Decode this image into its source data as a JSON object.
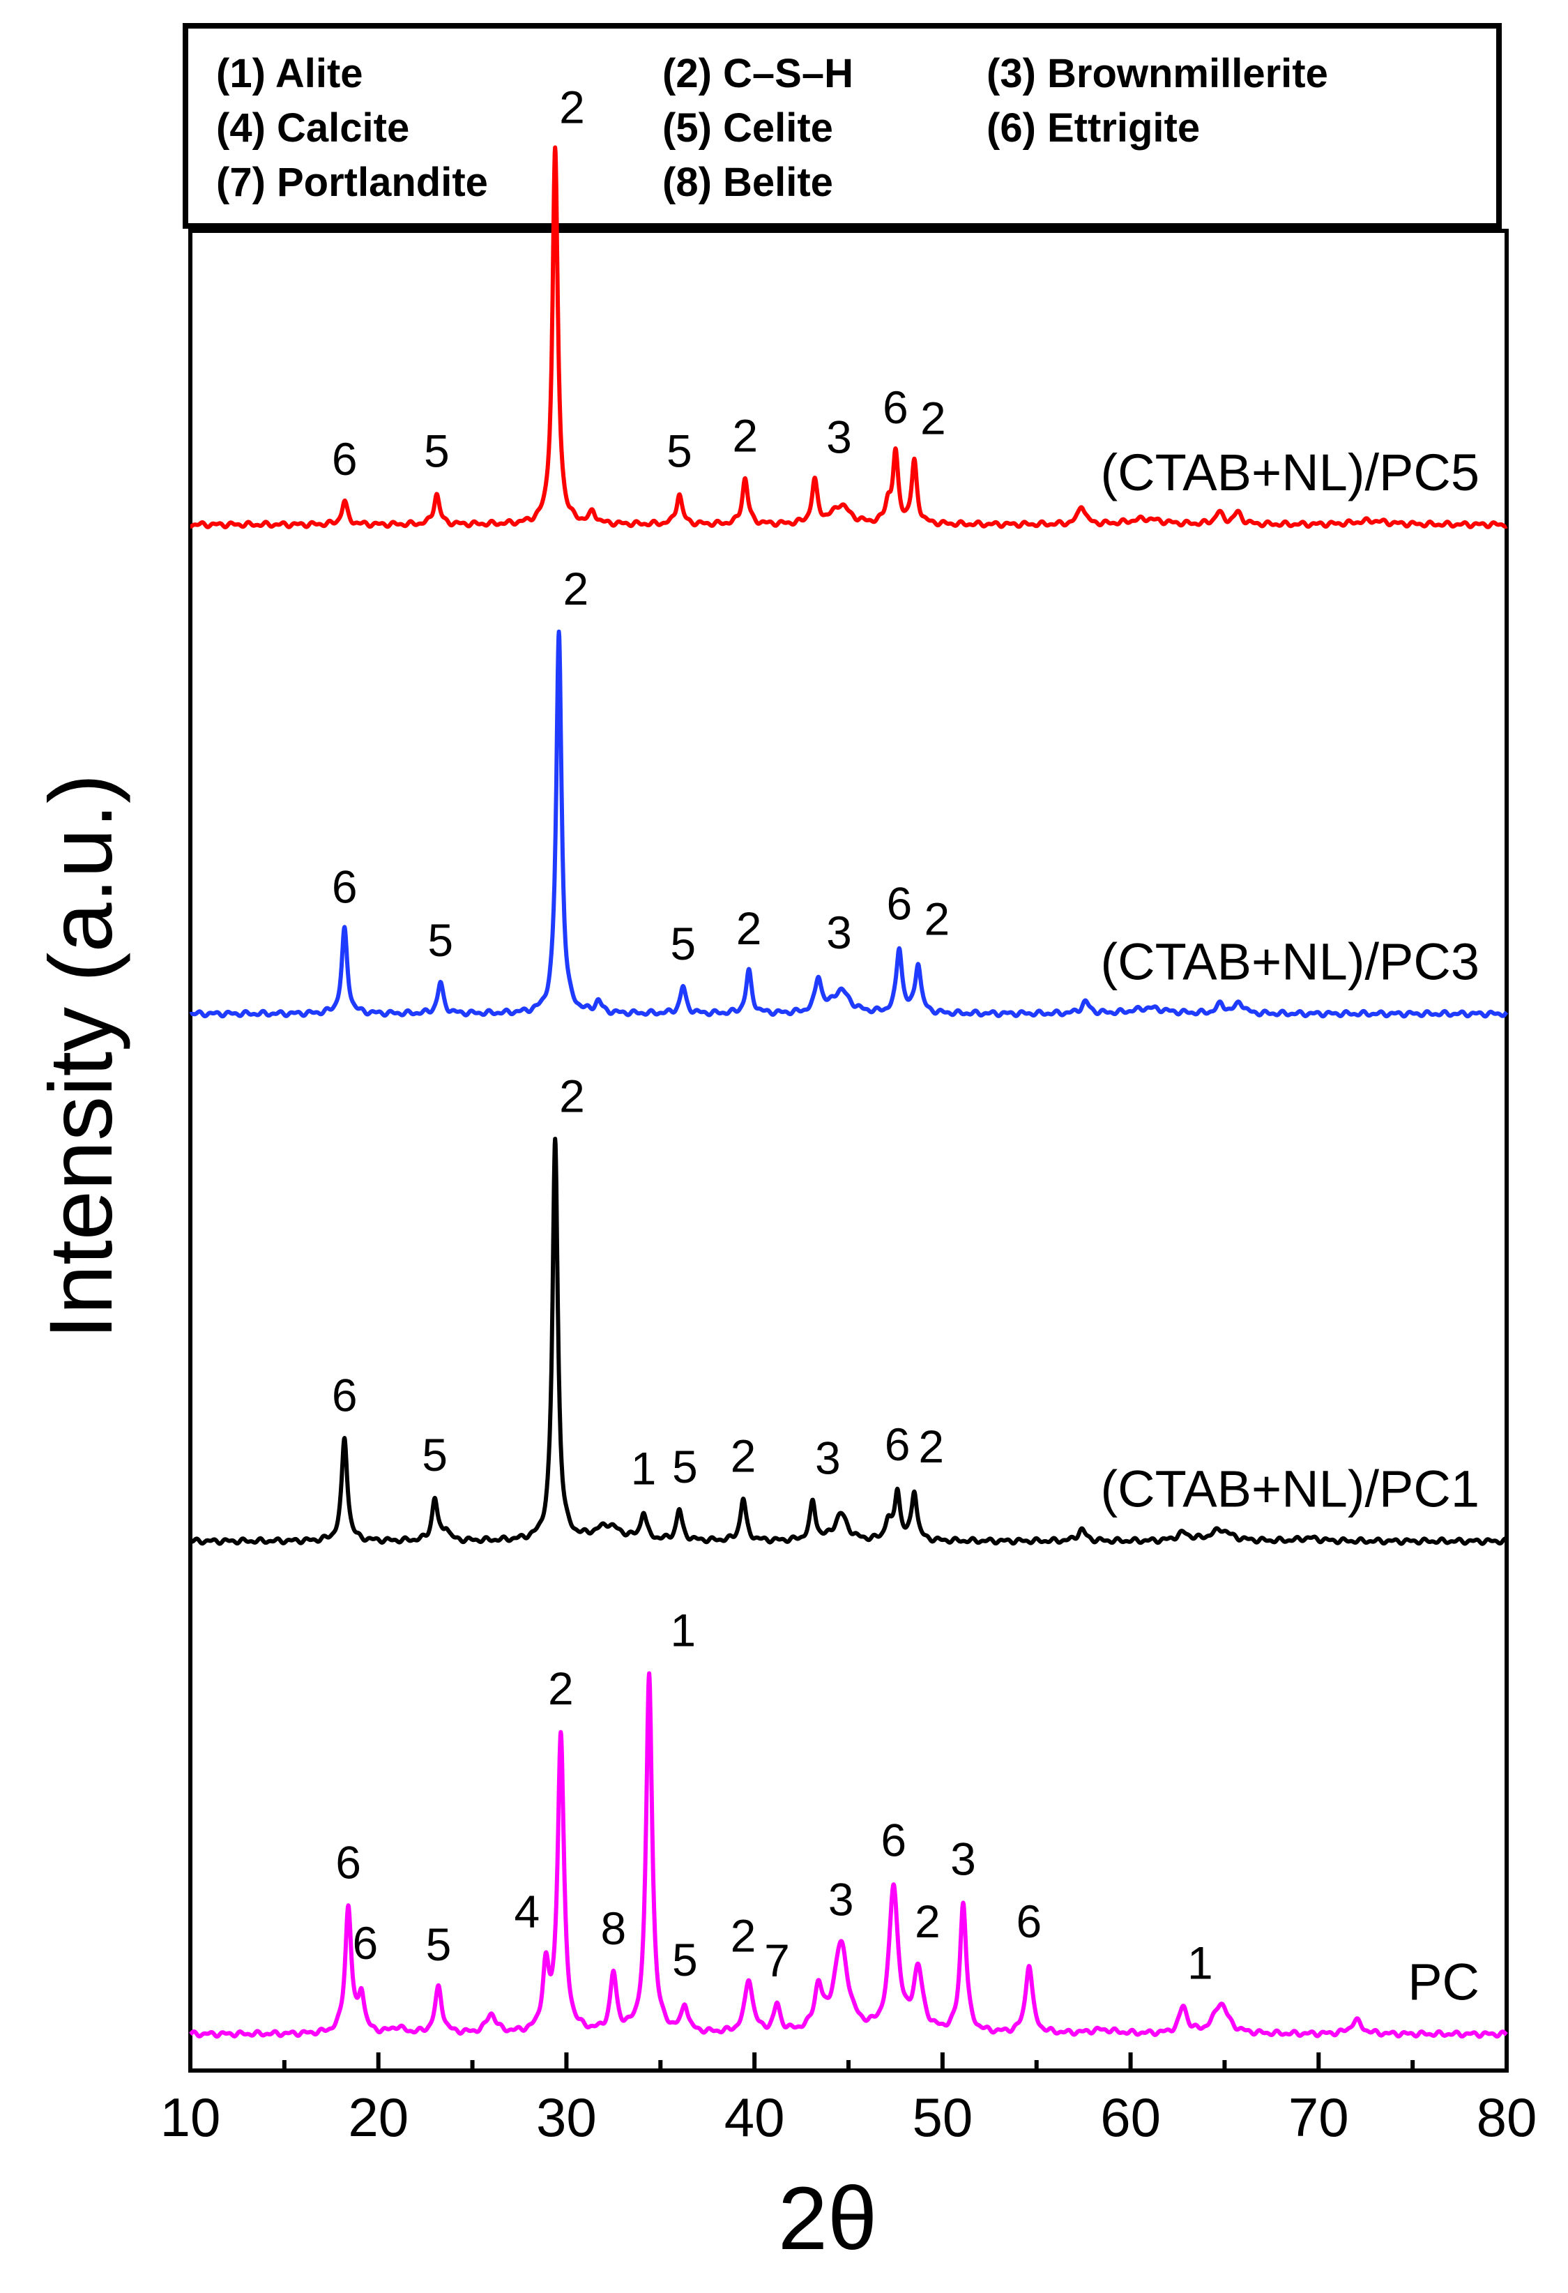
{
  "chart_data": {
    "type": "line",
    "title": "",
    "xlabel": "2θ",
    "ylabel": "Intensity (a.u.)",
    "xlim": [
      10,
      80
    ],
    "x_ticks": [
      10,
      20,
      30,
      40,
      50,
      60,
      70,
      80
    ],
    "legend": {
      "position": "top",
      "entries": [
        "(1) Alite",
        "(2) C–S–H",
        "(3) Brownmillerite",
        "(4) Calcite",
        "(5) Celite",
        "(6) Ettrigite",
        "(7) Portlandite",
        "(8) Belite"
      ]
    },
    "series": [
      {
        "name": "(CTAB+NL)/PC5",
        "color": "#ff0000",
        "offset": 2.66,
        "peaks": [
          {
            "x": 18.2,
            "h": 0.06,
            "w": 0.18
          },
          {
            "x": 23.1,
            "h": 0.08,
            "w": 0.18
          },
          {
            "x": 29.4,
            "h": 0.98,
            "w": 0.17
          },
          {
            "x": 31.4,
            "h": 0.03,
            "w": 0.2
          },
          {
            "x": 36.0,
            "h": 0.08,
            "w": 0.18
          },
          {
            "x": 39.5,
            "h": 0.12,
            "w": 0.18
          },
          {
            "x": 43.2,
            "h": 0.11,
            "w": 0.18
          },
          {
            "x": 44.6,
            "h": 0.05,
            "w": 0.55
          },
          {
            "x": 47.1,
            "h": 0.05,
            "w": 0.18
          },
          {
            "x": 47.5,
            "h": 0.18,
            "w": 0.17
          },
          {
            "x": 48.5,
            "h": 0.16,
            "w": 0.17
          },
          {
            "x": 57.4,
            "h": 0.05,
            "w": 0.22
          },
          {
            "x": 60.8,
            "h": 0.015,
            "w": 1.0
          },
          {
            "x": 64.7,
            "h": 0.03,
            "w": 0.25
          },
          {
            "x": 65.7,
            "h": 0.03,
            "w": 0.25
          },
          {
            "x": 72.8,
            "h": 0.01,
            "w": 1.0
          }
        ],
        "labels": [
          {
            "x": 18.2,
            "text": "6",
            "lift": 0.07
          },
          {
            "x": 23.1,
            "text": "5",
            "lift": 0.07
          },
          {
            "x": 29.4,
            "text": "2",
            "lift": 0.07,
            "dx": 0.9
          },
          {
            "x": 36.0,
            "text": "5",
            "lift": 0.07
          },
          {
            "x": 39.5,
            "text": "2",
            "lift": 0.07
          },
          {
            "x": 43.2,
            "text": "3",
            "lift": 0.07,
            "dx": 1.3
          },
          {
            "x": 47.5,
            "text": "6",
            "lift": 0.07
          },
          {
            "x": 48.5,
            "text": "2",
            "lift": 0.07,
            "dx": 1.0
          }
        ]
      },
      {
        "name": "(CTAB+NL)/PC3",
        "color": "#1f3bff",
        "offset": 1.38,
        "peaks": [
          {
            "x": 18.2,
            "h": 0.22,
            "w": 0.18
          },
          {
            "x": 23.3,
            "h": 0.08,
            "w": 0.18
          },
          {
            "x": 29.6,
            "h": 1.0,
            "w": 0.17
          },
          {
            "x": 31.7,
            "h": 0.03,
            "w": 0.2
          },
          {
            "x": 36.2,
            "h": 0.07,
            "w": 0.18
          },
          {
            "x": 39.7,
            "h": 0.11,
            "w": 0.18
          },
          {
            "x": 43.4,
            "h": 0.09,
            "w": 0.2
          },
          {
            "x": 44.6,
            "h": 0.06,
            "w": 0.55
          },
          {
            "x": 47.7,
            "h": 0.17,
            "w": 0.18
          },
          {
            "x": 48.7,
            "h": 0.13,
            "w": 0.18
          },
          {
            "x": 57.6,
            "h": 0.03,
            "w": 0.25
          },
          {
            "x": 61.0,
            "h": 0.015,
            "w": 1.0
          },
          {
            "x": 64.8,
            "h": 0.025,
            "w": 0.25
          },
          {
            "x": 65.8,
            "h": 0.03,
            "w": 0.25
          }
        ],
        "labels": [
          {
            "x": 18.2,
            "text": "6",
            "lift": 0.07
          },
          {
            "x": 23.3,
            "text": "5",
            "lift": 0.07
          },
          {
            "x": 29.6,
            "text": "2",
            "lift": 0.07,
            "dx": 0.9
          },
          {
            "x": 36.2,
            "text": "5",
            "lift": 0.07
          },
          {
            "x": 39.7,
            "text": "2",
            "lift": 0.07
          },
          {
            "x": 43.4,
            "text": "3",
            "lift": 0.07,
            "dx": 1.1
          },
          {
            "x": 47.7,
            "text": "6",
            "lift": 0.07
          },
          {
            "x": 48.7,
            "text": "2",
            "lift": 0.07,
            "dx": 1.0
          }
        ]
      },
      {
        "name": "(CTAB+NL)/PC1",
        "color": "#000000",
        "offset": 0.0,
        "peaks": [
          {
            "x": 18.2,
            "h": 0.27,
            "w": 0.18
          },
          {
            "x": 23.0,
            "h": 0.11,
            "w": 0.18
          },
          {
            "x": 23.6,
            "h": 0.03,
            "w": 0.18
          },
          {
            "x": 29.4,
            "h": 1.05,
            "w": 0.17
          },
          {
            "x": 32.2,
            "h": 0.04,
            "w": 0.8
          },
          {
            "x": 34.1,
            "h": 0.07,
            "w": 0.18
          },
          {
            "x": 36.0,
            "h": 0.08,
            "w": 0.18
          },
          {
            "x": 39.4,
            "h": 0.11,
            "w": 0.18
          },
          {
            "x": 43.1,
            "h": 0.1,
            "w": 0.18
          },
          {
            "x": 44.6,
            "h": 0.07,
            "w": 0.4
          },
          {
            "x": 47.1,
            "h": 0.05,
            "w": 0.18
          },
          {
            "x": 47.6,
            "h": 0.13,
            "w": 0.17
          },
          {
            "x": 48.5,
            "h": 0.13,
            "w": 0.17
          },
          {
            "x": 57.4,
            "h": 0.03,
            "w": 0.25
          },
          {
            "x": 62.8,
            "h": 0.02,
            "w": 0.4
          },
          {
            "x": 64.8,
            "h": 0.03,
            "w": 0.6
          },
          {
            "x": 69.5,
            "h": 0.008,
            "w": 0.6
          }
        ],
        "labels": [
          {
            "x": 18.2,
            "text": "6",
            "lift": 0.07
          },
          {
            "x": 23.0,
            "text": "5",
            "lift": 0.07
          },
          {
            "x": 29.4,
            "text": "2",
            "lift": 0.07,
            "dx": 0.9
          },
          {
            "x": 34.1,
            "text": "1",
            "lift": 0.07
          },
          {
            "x": 36.0,
            "text": "5",
            "lift": 0.07,
            "dx": 0.3
          },
          {
            "x": 39.4,
            "text": "2",
            "lift": 0.07
          },
          {
            "x": 43.1,
            "text": "3",
            "lift": 0.07,
            "dx": 0.8
          },
          {
            "x": 47.6,
            "text": "6",
            "lift": 0.07
          },
          {
            "x": 48.5,
            "text": "2",
            "lift": 0.07,
            "dx": 0.9
          }
        ]
      },
      {
        "name": "PC",
        "color": "#ff00ff",
        "offset": -1.29,
        "peaks": [
          {
            "x": 18.4,
            "h": 0.33,
            "w": 0.2
          },
          {
            "x": 19.1,
            "h": 0.1,
            "w": 0.18
          },
          {
            "x": 21.0,
            "h": 0.015,
            "w": 0.4
          },
          {
            "x": 23.2,
            "h": 0.12,
            "w": 0.22
          },
          {
            "x": 26.0,
            "h": 0.05,
            "w": 0.3
          },
          {
            "x": 28.9,
            "h": 0.16,
            "w": 0.2
          },
          {
            "x": 29.7,
            "h": 0.78,
            "w": 0.2
          },
          {
            "x": 32.5,
            "h": 0.15,
            "w": 0.2
          },
          {
            "x": 34.4,
            "h": 0.94,
            "w": 0.19
          },
          {
            "x": 36.3,
            "h": 0.07,
            "w": 0.2
          },
          {
            "x": 39.7,
            "h": 0.14,
            "w": 0.25
          },
          {
            "x": 41.2,
            "h": 0.07,
            "w": 0.2
          },
          {
            "x": 43.4,
            "h": 0.11,
            "w": 0.25
          },
          {
            "x": 44.6,
            "h": 0.23,
            "w": 0.45
          },
          {
            "x": 47.4,
            "h": 0.38,
            "w": 0.28
          },
          {
            "x": 48.7,
            "h": 0.16,
            "w": 0.3
          },
          {
            "x": 51.1,
            "h": 0.34,
            "w": 0.2
          },
          {
            "x": 54.6,
            "h": 0.18,
            "w": 0.22
          },
          {
            "x": 58.5,
            "h": 0.01,
            "w": 0.8
          },
          {
            "x": 62.8,
            "h": 0.07,
            "w": 0.25
          },
          {
            "x": 64.8,
            "h": 0.08,
            "w": 0.45
          },
          {
            "x": 72.0,
            "h": 0.035,
            "w": 0.35
          }
        ],
        "labels": [
          {
            "x": 18.4,
            "text": "6",
            "lift": 0.07
          },
          {
            "x": 19.1,
            "text": "6",
            "lift": 0.07,
            "dx": 0.2
          },
          {
            "x": 23.2,
            "text": "5",
            "lift": 0.07
          },
          {
            "x": 28.9,
            "text": "4",
            "lift": 0.07,
            "dx": -1.0
          },
          {
            "x": 29.7,
            "text": "2",
            "lift": 0.07
          },
          {
            "x": 32.5,
            "text": "8",
            "lift": 0.07
          },
          {
            "x": 34.4,
            "text": "1",
            "lift": 0.07,
            "dx": 1.8
          },
          {
            "x": 36.3,
            "text": "5",
            "lift": 0.07
          },
          {
            "x": 39.7,
            "text": "2",
            "lift": 0.07,
            "dx": -0.3
          },
          {
            "x": 41.2,
            "text": "7",
            "lift": 0.07
          },
          {
            "x": 44.6,
            "text": "3",
            "lift": 0.07
          },
          {
            "x": 47.4,
            "text": "6",
            "lift": 0.07
          },
          {
            "x": 48.7,
            "text": "2",
            "lift": 0.07,
            "dx": 0.5
          },
          {
            "x": 51.1,
            "text": "3",
            "lift": 0.07
          },
          {
            "x": 54.6,
            "text": "6",
            "lift": 0.07
          },
          {
            "x": 62.8,
            "text": "1",
            "lift": 0.07,
            "dx": 0.9
          }
        ]
      }
    ]
  }
}
